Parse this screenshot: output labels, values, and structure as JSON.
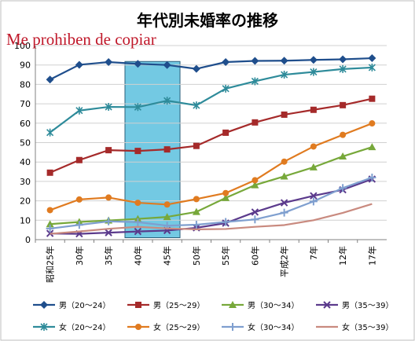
{
  "overlay_text": "Me prohiben de copiar",
  "chart_data": {
    "type": "line",
    "title": "年代別未婚率の推移",
    "xlabel": "",
    "ylabel": "",
    "ylim": [
      0,
      100
    ],
    "yticks": [
      0,
      10,
      20,
      30,
      40,
      50,
      60,
      70,
      80,
      90,
      100
    ],
    "grid": true,
    "legend_position": "bottom",
    "categories": [
      "昭和25年",
      "30年",
      "35年",
      "40年",
      "45年",
      "50年",
      "55年",
      "60年",
      "平成2年",
      "7年",
      "12年",
      "17年"
    ],
    "highlight": {
      "from": "40年",
      "to": "45年",
      "color": "#5bc0de"
    },
    "series": [
      {
        "name": "男（20～24）",
        "color": "#1f4e8c",
        "marker": "diamond",
        "values": [
          82.5,
          90.1,
          91.5,
          90.6,
          90.0,
          88.0,
          91.5,
          92.1,
          92.2,
          92.6,
          92.9,
          93.5
        ]
      },
      {
        "name": "男（25～29）",
        "color": "#a52a2a",
        "marker": "square",
        "values": [
          34.5,
          41.0,
          46.1,
          45.7,
          46.5,
          48.3,
          55.1,
          60.4,
          64.4,
          66.9,
          69.3,
          72.6
        ]
      },
      {
        "name": "男（30～34）",
        "color": "#77a83a",
        "marker": "triangle",
        "values": [
          8.0,
          9.1,
          9.9,
          10.7,
          11.7,
          14.3,
          21.5,
          28.1,
          32.6,
          37.3,
          42.9,
          47.7
        ]
      },
      {
        "name": "男（35～39）",
        "color": "#5b3a8c",
        "marker": "x",
        "values": [
          3.2,
          3.0,
          3.6,
          4.2,
          4.7,
          6.1,
          8.5,
          14.2,
          19.0,
          22.6,
          25.7,
          31.2
        ]
      },
      {
        "name": "女（20～24）",
        "color": "#2e8b9a",
        "marker": "star",
        "values": [
          55.2,
          66.5,
          68.4,
          68.3,
          71.6,
          69.2,
          77.8,
          81.6,
          85.0,
          86.4,
          87.9,
          88.7
        ]
      },
      {
        "name": "女（25～29）",
        "color": "#e07b20",
        "marker": "circle",
        "values": [
          15.2,
          20.7,
          21.7,
          19.0,
          18.1,
          20.9,
          24.0,
          30.6,
          40.2,
          48.0,
          54.0,
          59.9
        ]
      },
      {
        "name": "女（30～34）",
        "color": "#7f9fcf",
        "marker": "plus",
        "values": [
          5.7,
          7.6,
          9.4,
          9.0,
          7.2,
          7.7,
          9.1,
          10.4,
          13.9,
          19.7,
          26.6,
          32.0
        ]
      },
      {
        "name": "女（35～39）",
        "color": "#c98a7f",
        "marker": "none",
        "values": [
          3.0,
          4.2,
          5.6,
          6.6,
          5.8,
          5.3,
          5.5,
          6.6,
          7.5,
          10.0,
          13.8,
          18.4
        ]
      }
    ]
  }
}
